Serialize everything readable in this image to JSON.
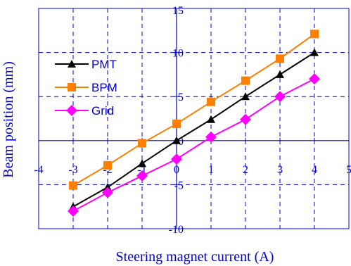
{
  "chart_data": {
    "type": "line",
    "xlabel": "Steering magnet current (A)",
    "ylabel": "Beam position (mm)",
    "xlim": [
      -4,
      5
    ],
    "ylim": [
      -10,
      15
    ],
    "x_ticks": [
      -4,
      -3,
      -2,
      -1,
      0,
      1,
      2,
      3,
      4,
      5
    ],
    "x_tick_labels": [
      "-4",
      "-3",
      "-2",
      "-1",
      "0",
      "1",
      "2",
      "3",
      "4",
      "5"
    ],
    "y_ticks": [
      -10,
      -5,
      0,
      5,
      10,
      15
    ],
    "y_tick_labels": [
      "-10",
      "-5",
      "0",
      "5",
      "10",
      "15"
    ],
    "grid": true,
    "legend_position": "left",
    "x": [
      -3,
      -2,
      -1,
      0,
      1,
      2,
      3,
      4
    ],
    "series": [
      {
        "name": "PMT",
        "color": "#000000",
        "marker": "triangle",
        "values": [
          -7.5,
          -5.3,
          -2.6,
          0.0,
          2.4,
          5.0,
          7.5,
          10.0
        ]
      },
      {
        "name": "BPM",
        "color": "#ff7f00",
        "marker": "square",
        "values": [
          -5.1,
          -2.8,
          -0.3,
          1.9,
          4.4,
          6.8,
          9.3,
          12.1
        ]
      },
      {
        "name": "Grid",
        "color": "#ff00ff",
        "marker": "diamond",
        "values": [
          -8.0,
          -5.9,
          -4.0,
          -2.1,
          0.4,
          2.4,
          5.0,
          7.0
        ]
      }
    ]
  }
}
